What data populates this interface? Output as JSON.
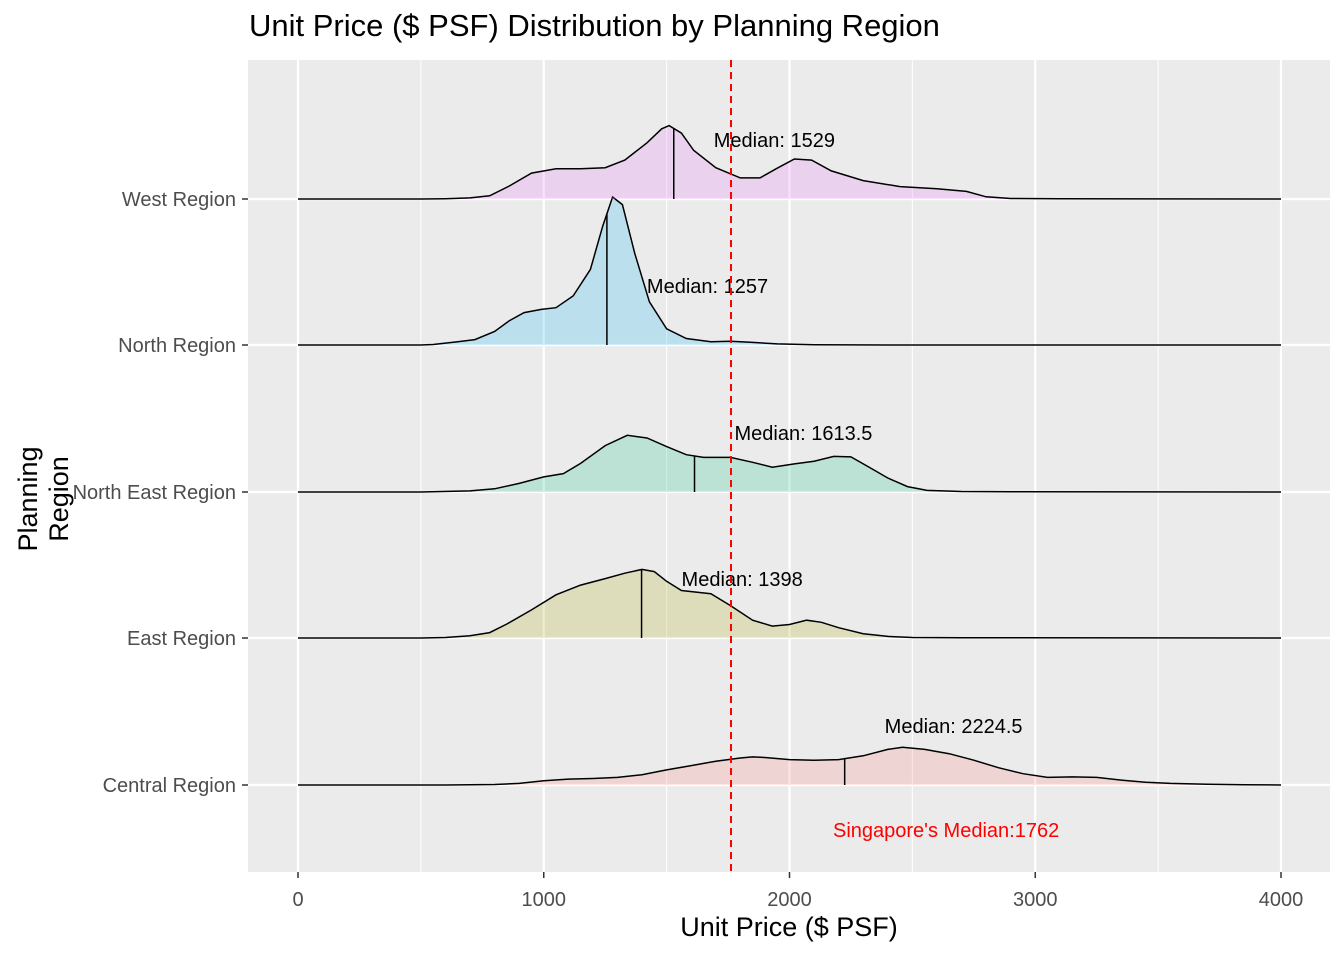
{
  "chart_data": {
    "type": "density_ridges",
    "title": "Unit Price ($ PSF) Distribution by Planning Region",
    "xlabel": "Unit Price ($ PSF)",
    "ylabel": "Planning Region",
    "xlim": [
      -200,
      4200
    ],
    "x_ticks": [
      0,
      1000,
      2000,
      3000,
      4000
    ],
    "grid": true,
    "background": "#EBEBEB",
    "overall_median": {
      "value": 1762,
      "label": "Singapore's Median:1762",
      "color": "#FF0000"
    },
    "series": [
      {
        "name": "Central Region",
        "color": "#F8766D",
        "median": 2224.5,
        "median_label": "Median: 2224.5",
        "density": [
          [
            0,
            0
          ],
          [
            600,
            0
          ],
          [
            800,
            0.01
          ],
          [
            900,
            0.03
          ],
          [
            1000,
            0.08
          ],
          [
            1100,
            0.11
          ],
          [
            1200,
            0.12
          ],
          [
            1300,
            0.14
          ],
          [
            1400,
            0.19
          ],
          [
            1500,
            0.28
          ],
          [
            1600,
            0.36
          ],
          [
            1700,
            0.44
          ],
          [
            1800,
            0.5
          ],
          [
            1850,
            0.52
          ],
          [
            1900,
            0.51
          ],
          [
            2000,
            0.47
          ],
          [
            2100,
            0.46
          ],
          [
            2200,
            0.47
          ],
          [
            2300,
            0.54
          ],
          [
            2400,
            0.66
          ],
          [
            2460,
            0.7
          ],
          [
            2550,
            0.66
          ],
          [
            2650,
            0.58
          ],
          [
            2750,
            0.46
          ],
          [
            2850,
            0.32
          ],
          [
            2950,
            0.21
          ],
          [
            3050,
            0.14
          ],
          [
            3150,
            0.15
          ],
          [
            3250,
            0.14
          ],
          [
            3350,
            0.09
          ],
          [
            3450,
            0.05
          ],
          [
            3550,
            0.03
          ],
          [
            3700,
            0.015
          ],
          [
            3850,
            0.005
          ],
          [
            4000,
            0
          ]
        ]
      },
      {
        "name": "East Region",
        "color": "#A3A500",
        "median": 1398,
        "median_label": "Median: 1398",
        "density": [
          [
            0,
            0
          ],
          [
            500,
            0
          ],
          [
            600,
            0.01
          ],
          [
            700,
            0.04
          ],
          [
            780,
            0.1
          ],
          [
            850,
            0.26
          ],
          [
            950,
            0.52
          ],
          [
            1050,
            0.8
          ],
          [
            1150,
            0.98
          ],
          [
            1250,
            1.1
          ],
          [
            1330,
            1.2
          ],
          [
            1400,
            1.27
          ],
          [
            1450,
            1.23
          ],
          [
            1500,
            1.05
          ],
          [
            1560,
            0.88
          ],
          [
            1620,
            0.85
          ],
          [
            1680,
            0.82
          ],
          [
            1760,
            0.6
          ],
          [
            1850,
            0.33
          ],
          [
            1930,
            0.22
          ],
          [
            2000,
            0.25
          ],
          [
            2070,
            0.33
          ],
          [
            2130,
            0.29
          ],
          [
            2200,
            0.19
          ],
          [
            2300,
            0.08
          ],
          [
            2400,
            0.03
          ],
          [
            2500,
            0.01
          ],
          [
            2700,
            0.005
          ],
          [
            4000,
            0
          ]
        ]
      },
      {
        "name": "North East Region",
        "color": "#00BF7D",
        "median": 1613.5,
        "median_label": "Median: 1613.5",
        "density": [
          [
            0,
            0
          ],
          [
            500,
            0
          ],
          [
            700,
            0.02
          ],
          [
            800,
            0.06
          ],
          [
            900,
            0.16
          ],
          [
            1000,
            0.28
          ],
          [
            1080,
            0.34
          ],
          [
            1150,
            0.53
          ],
          [
            1250,
            0.86
          ],
          [
            1340,
            1.05
          ],
          [
            1420,
            1.0
          ],
          [
            1500,
            0.84
          ],
          [
            1580,
            0.69
          ],
          [
            1650,
            0.64
          ],
          [
            1760,
            0.64
          ],
          [
            1850,
            0.55
          ],
          [
            1930,
            0.46
          ],
          [
            2020,
            0.52
          ],
          [
            2100,
            0.57
          ],
          [
            2180,
            0.66
          ],
          [
            2250,
            0.65
          ],
          [
            2320,
            0.47
          ],
          [
            2400,
            0.26
          ],
          [
            2480,
            0.1
          ],
          [
            2560,
            0.03
          ],
          [
            2700,
            0.01
          ],
          [
            2900,
            0.003
          ],
          [
            4000,
            0
          ]
        ]
      },
      {
        "name": "North Region",
        "color": "#00B0F6",
        "median": 1257,
        "median_label": "Median: 1257",
        "density": [
          [
            0,
            0
          ],
          [
            500,
            0
          ],
          [
            550,
            0.01
          ],
          [
            650,
            0.06
          ],
          [
            720,
            0.1
          ],
          [
            800,
            0.25
          ],
          [
            860,
            0.45
          ],
          [
            920,
            0.6
          ],
          [
            990,
            0.66
          ],
          [
            1050,
            0.69
          ],
          [
            1120,
            0.91
          ],
          [
            1190,
            1.4
          ],
          [
            1240,
            2.2
          ],
          [
            1280,
            2.74
          ],
          [
            1320,
            2.6
          ],
          [
            1370,
            1.7
          ],
          [
            1430,
            0.8
          ],
          [
            1500,
            0.3
          ],
          [
            1580,
            0.12
          ],
          [
            1680,
            0.06
          ],
          [
            1760,
            0.07
          ],
          [
            1840,
            0.05
          ],
          [
            1950,
            0.02
          ],
          [
            2100,
            0.005
          ],
          [
            2400,
            0
          ],
          [
            4000,
            0
          ]
        ]
      },
      {
        "name": "West Region",
        "color": "#E76BF3",
        "median": 1529,
        "median_label": "Median: 1529",
        "density": [
          [
            0,
            0
          ],
          [
            500,
            0
          ],
          [
            600,
            0.005
          ],
          [
            700,
            0.02
          ],
          [
            780,
            0.06
          ],
          [
            860,
            0.24
          ],
          [
            950,
            0.48
          ],
          [
            1050,
            0.56
          ],
          [
            1150,
            0.56
          ],
          [
            1250,
            0.58
          ],
          [
            1330,
            0.72
          ],
          [
            1420,
            1.04
          ],
          [
            1480,
            1.3
          ],
          [
            1510,
            1.36
          ],
          [
            1560,
            1.22
          ],
          [
            1610,
            0.9
          ],
          [
            1700,
            0.58
          ],
          [
            1800,
            0.39
          ],
          [
            1880,
            0.39
          ],
          [
            1950,
            0.57
          ],
          [
            2020,
            0.74
          ],
          [
            2090,
            0.72
          ],
          [
            2170,
            0.52
          ],
          [
            2300,
            0.34
          ],
          [
            2450,
            0.23
          ],
          [
            2600,
            0.19
          ],
          [
            2720,
            0.14
          ],
          [
            2800,
            0.04
          ],
          [
            2900,
            0.01
          ],
          [
            3100,
            0.003
          ],
          [
            4000,
            0
          ]
        ]
      }
    ]
  }
}
